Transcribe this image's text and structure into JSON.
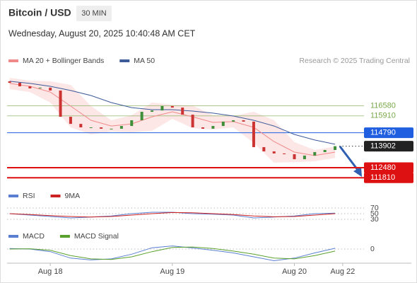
{
  "header": {
    "title": "Bitcoin / USD",
    "timeframe": "30 MIN",
    "date": "Wednesday, August 20, 2025 10:40:48 AM CET",
    "credit": "Research © 2025 Trading Central"
  },
  "xaxis": {
    "xlim": [
      -8.5,
      71
    ],
    "xticks": [
      {
        "value": 0,
        "label": "Aug 18"
      },
      {
        "value": 24,
        "label": "Aug 19"
      },
      {
        "value": 48,
        "label": "Aug 20"
      },
      {
        "value": 57.5,
        "label": "Aug 22"
      }
    ]
  },
  "chart_data": [
    {
      "type": "candlestick",
      "ylim": [
        111400,
        118900
      ],
      "candles": {
        "x": [
          -8,
          -6,
          -4,
          -2,
          0,
          2,
          4,
          6,
          8,
          10,
          12,
          14,
          16,
          18,
          20,
          22,
          24,
          26,
          28,
          30,
          32,
          34,
          36,
          38,
          40,
          42,
          44,
          46,
          48,
          50,
          52,
          54,
          56
        ],
        "open": [
          118200,
          118100,
          117870,
          117730,
          117780,
          117590,
          115850,
          115380,
          115150,
          115150,
          115060,
          115060,
          115240,
          115620,
          116180,
          116270,
          116560,
          116460,
          115990,
          115150,
          115060,
          115240,
          115530,
          115620,
          115530,
          113840,
          113560,
          113420,
          113370,
          113040,
          113280,
          113510,
          113650
        ],
        "close": [
          118100,
          117870,
          117730,
          117780,
          117590,
          115850,
          115380,
          115150,
          115150,
          115060,
          115060,
          115240,
          115620,
          116180,
          116270,
          116560,
          116460,
          115990,
          115150,
          115060,
          115240,
          115530,
          115620,
          115530,
          113840,
          113560,
          113420,
          113370,
          113040,
          113280,
          113510,
          113650,
          113902
        ],
        "up_color": "#3f8f3a",
        "down_color": "#cc3333"
      },
      "x": [
        -8,
        -4,
        0,
        4,
        8,
        12,
        16,
        20,
        24,
        28,
        32,
        36,
        40,
        44,
        48,
        52,
        56
      ],
      "series": [
        {
          "name": "MA 20 + Bollinger Bands",
          "color": "#f08a8a",
          "values": [
            118060,
            117870,
            117490,
            116560,
            115620,
            115240,
            115380,
            115850,
            116180,
            115850,
            115480,
            115530,
            115150,
            114210,
            113510,
            113280,
            113510
          ],
          "upper": [
            118430,
            118240,
            118200,
            117960,
            116560,
            115620,
            115950,
            116790,
            116650,
            116600,
            115950,
            115900,
            116180,
            115620,
            114170,
            113650,
            113880
          ],
          "lower": [
            117680,
            117490,
            116790,
            115150,
            114680,
            114870,
            114820,
            114920,
            115710,
            115100,
            115010,
            115150,
            114120,
            112810,
            112850,
            112900,
            113130
          ]
        },
        {
          "name": "MA 50",
          "color": "#3d5a99",
          "values": [
            118200,
            118060,
            117870,
            117590,
            117260,
            116790,
            116460,
            116320,
            116320,
            116230,
            116090,
            115900,
            115620,
            115240,
            114680,
            114310,
            114030
          ]
        }
      ],
      "levels": [
        {
          "value": 116580,
          "color": "#7aa84a",
          "box": false
        },
        {
          "value": 115910,
          "color": "#7aa84a",
          "box": false
        },
        {
          "value": 114790,
          "color": "#1f5fe0",
          "box": true
        },
        {
          "value": 113902,
          "color": "#222222",
          "box": true,
          "dotted": true
        },
        {
          "value": 112480,
          "color": "#dd1111",
          "box": true
        },
        {
          "value": 111810,
          "color": "#dd1111",
          "box": true
        }
      ]
    },
    {
      "type": "line",
      "ylim": [
        10,
        90
      ],
      "yticks": [
        70,
        50,
        30
      ],
      "grid": true,
      "x": [
        -8,
        -4,
        0,
        4,
        8,
        12,
        16,
        20,
        24,
        28,
        32,
        36,
        40,
        44,
        48,
        52,
        56
      ],
      "series": [
        {
          "name": "RSI",
          "color": "#5b7fd0",
          "values": [
            50,
            45,
            40,
            35,
            38,
            42,
            50,
            55,
            55,
            50,
            48,
            45,
            35,
            38,
            42,
            50,
            52
          ]
        },
        {
          "name": "9MA",
          "color": "#cc2222",
          "values": [
            50,
            47,
            43,
            40,
            38,
            40,
            45,
            50,
            54,
            53,
            50,
            47,
            42,
            39,
            40,
            45,
            50
          ]
        }
      ]
    },
    {
      "type": "line",
      "ylim": [
        -600,
        600
      ],
      "yticks": [
        0
      ],
      "grid": true,
      "x": [
        -8,
        -4,
        0,
        4,
        8,
        12,
        16,
        20,
        24,
        28,
        32,
        36,
        40,
        44,
        48,
        52,
        56
      ],
      "series": [
        {
          "name": "MACD",
          "color": "#5b7fd0",
          "values": [
            20,
            0,
            -100,
            -350,
            -420,
            -380,
            -200,
            50,
            120,
            40,
            -50,
            -150,
            -300,
            -450,
            -350,
            -150,
            30
          ]
        },
        {
          "name": "MACD Signal",
          "color": "#5aa02c",
          "values": [
            0,
            10,
            -50,
            -250,
            -380,
            -400,
            -300,
            -100,
            60,
            80,
            20,
            -80,
            -200,
            -350,
            -380,
            -250,
            -80
          ]
        }
      ]
    }
  ]
}
